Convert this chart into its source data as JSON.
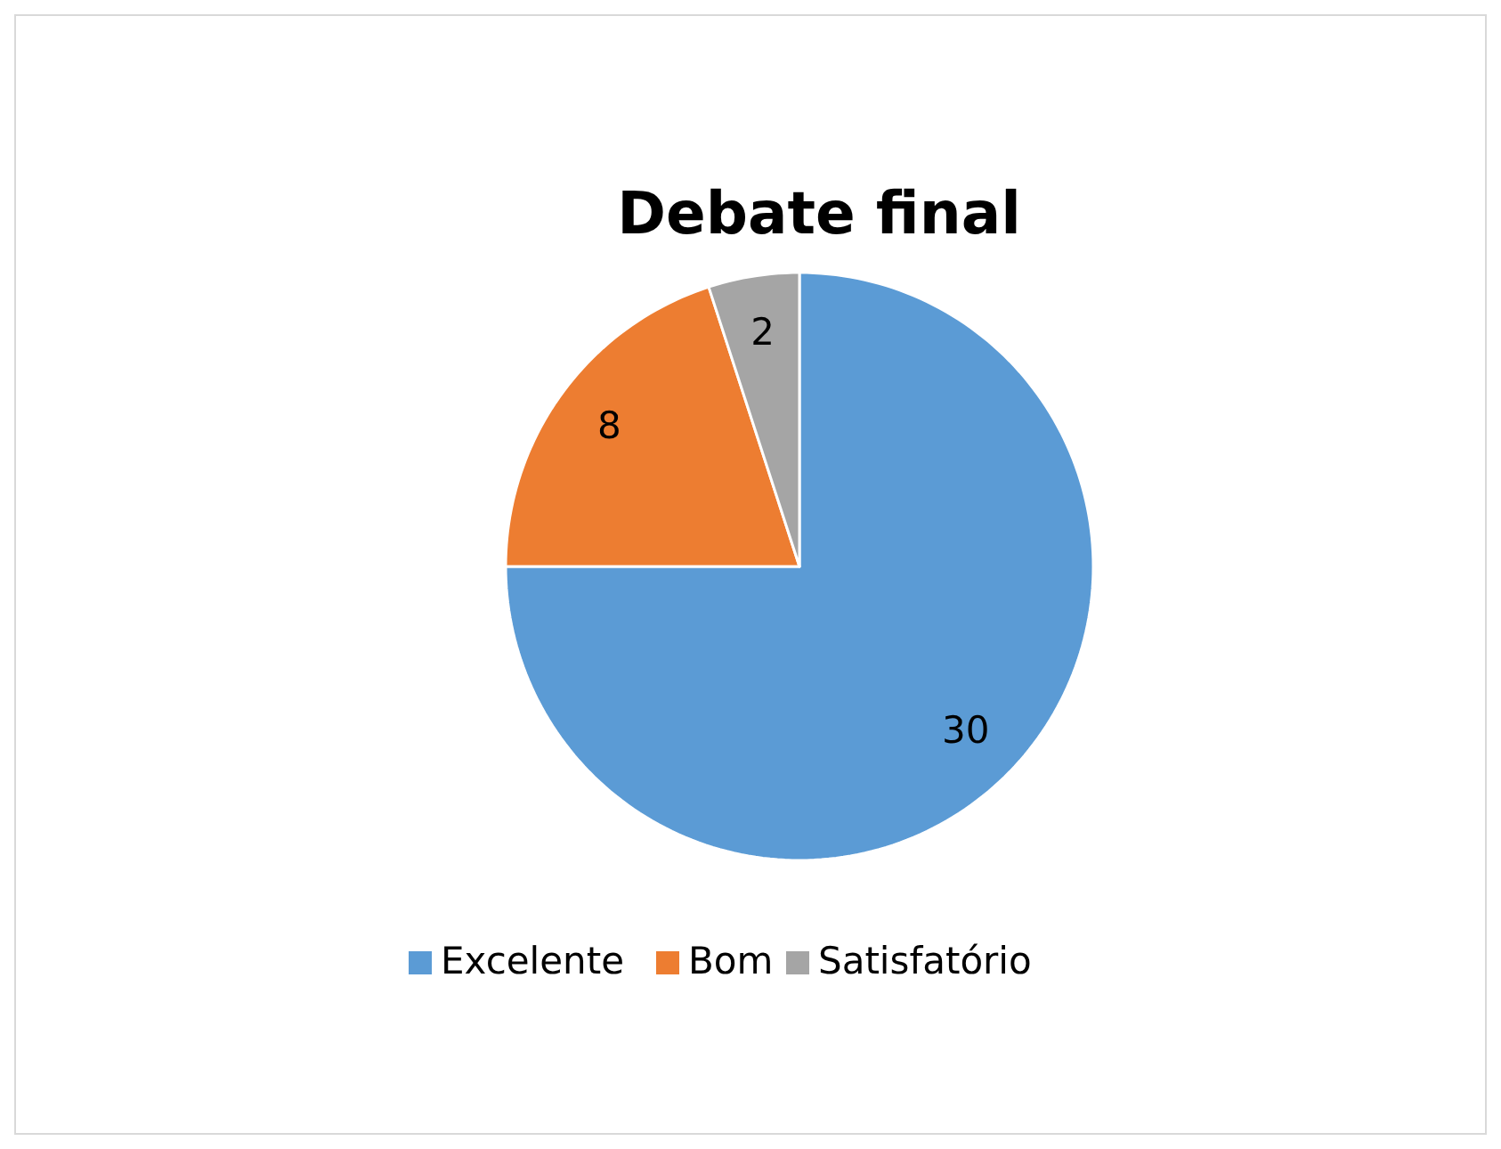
{
  "chart_data": {
    "type": "pie",
    "title": "Debate final",
    "categories": [
      "Excelente",
      "Bom",
      "Satisfatório"
    ],
    "values": [
      30,
      8,
      2
    ],
    "colors": [
      "#5b9bd5",
      "#ed7d31",
      "#a5a5a5"
    ],
    "data_labels": true,
    "legend": "bottom"
  }
}
